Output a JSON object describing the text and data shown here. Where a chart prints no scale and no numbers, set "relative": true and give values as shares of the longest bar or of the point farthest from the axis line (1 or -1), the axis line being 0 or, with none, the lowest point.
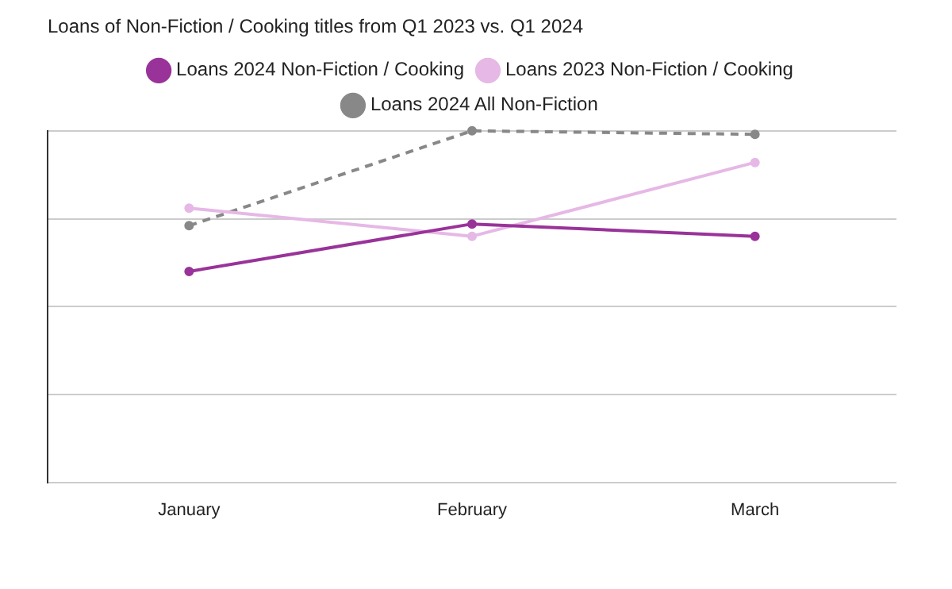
{
  "chart_data": {
    "type": "line",
    "title": "Loans of Non-Fiction / Cooking titles from Q1 2023 vs. Q1 2024",
    "categories": [
      "January",
      "February",
      "March"
    ],
    "relative": true,
    "grid": "y",
    "legend": "top",
    "marker": "circle",
    "series": [
      {
        "name": "Loans 2024 Non-Fiction / Cooking",
        "color": "#993399",
        "values": [
          0.6,
          0.735,
          0.7
        ]
      },
      {
        "name": "Loans 2023 Non-Fiction / Cooking",
        "color": "#e6b8e6",
        "values": [
          0.78,
          0.7,
          0.91
        ]
      },
      {
        "name": "Loans 2024 All Non-Fiction",
        "color": "#888888",
        "line_style": "dashed",
        "values": [
          0.73,
          1,
          0.99
        ]
      }
    ]
  }
}
